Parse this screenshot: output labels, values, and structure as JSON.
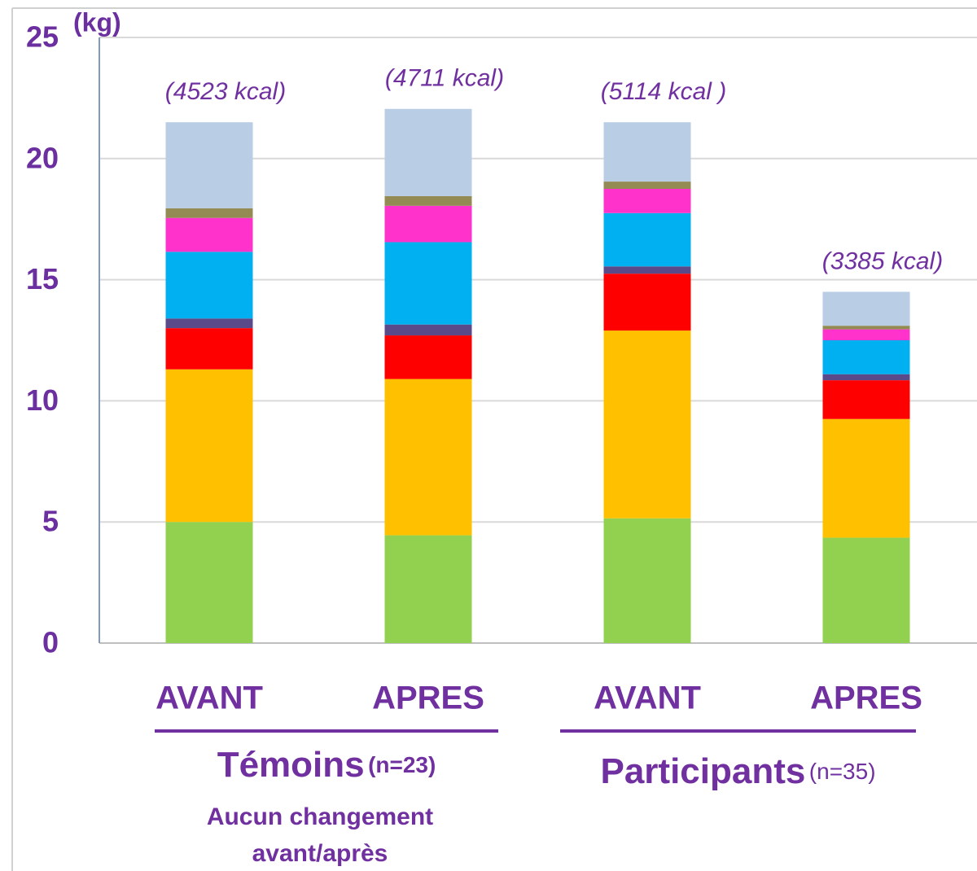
{
  "chart_data": {
    "type": "stacked_bar",
    "y_unit": "(kg)",
    "categories": [
      "AVANT",
      "APRES",
      "AVANT",
      "APRES"
    ],
    "bar_annotations": [
      "(4523 kcal)",
      "(4711 kcal)",
      "(5114 kcal )",
      "(3385 kcal)"
    ],
    "series": [
      {
        "color": "#92d050",
        "values": [
          5.0,
          4.45,
          5.15,
          4.35
        ]
      },
      {
        "color": "#ffc000",
        "values": [
          6.3,
          6.45,
          7.75,
          4.9
        ]
      },
      {
        "color": "#ff0000",
        "values": [
          1.7,
          1.8,
          2.35,
          1.6
        ]
      },
      {
        "color": "#5b4a8a",
        "values": [
          0.4,
          0.45,
          0.3,
          0.25
        ]
      },
      {
        "color": "#00b0f0",
        "values": [
          2.75,
          3.4,
          2.2,
          1.4
        ]
      },
      {
        "color": "#ff33cc",
        "values": [
          1.4,
          1.5,
          1.0,
          0.45
        ]
      },
      {
        "color": "#948a54",
        "values": [
          0.4,
          0.4,
          0.3,
          0.15
        ]
      },
      {
        "color": "#b9cde5",
        "values": [
          3.55,
          3.6,
          2.45,
          1.4
        ]
      }
    ],
    "groups": [
      {
        "name": "Témoins",
        "n": "(n=23)",
        "note_lines": [
          "Aucun changement",
          "avant/après"
        ]
      },
      {
        "name": "Participants",
        "n": "(n=35)"
      }
    ],
    "ylim": [
      0,
      25
    ],
    "yticks": [
      0,
      5,
      10,
      15,
      20,
      25
    ],
    "grid": true
  }
}
